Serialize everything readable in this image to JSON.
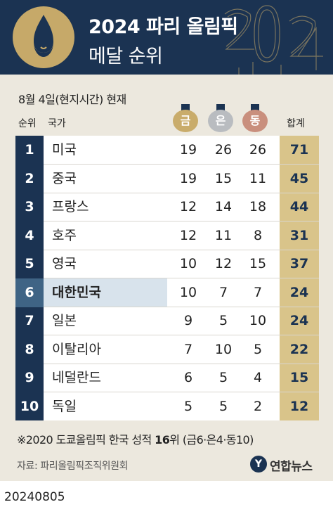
{
  "header": {
    "title": "2024 파리 올림픽",
    "subtitle": "메달 순위",
    "emblem_icon": "paris-2024-flame-emblem-icon",
    "colors": {
      "navy": "#1b3352",
      "gold": "#c6a969"
    }
  },
  "date_note": "8월 4일(현지시간) 현재",
  "columns": {
    "rank": "순위",
    "country": "국가",
    "total": "합계"
  },
  "medals": [
    {
      "label": "금",
      "color": "#c9ac6b"
    },
    {
      "label": "은",
      "color": "#b9bcc0"
    },
    {
      "label": "동",
      "color": "#c98f7d"
    }
  ],
  "rows": [
    {
      "rank": "1",
      "country": "미국",
      "gold": "19",
      "silver": "26",
      "bronze": "26",
      "total": "71"
    },
    {
      "rank": "2",
      "country": "중국",
      "gold": "19",
      "silver": "15",
      "bronze": "11",
      "total": "45"
    },
    {
      "rank": "3",
      "country": "프랑스",
      "gold": "12",
      "silver": "14",
      "bronze": "18",
      "total": "44"
    },
    {
      "rank": "4",
      "country": "호주",
      "gold": "12",
      "silver": "11",
      "bronze": "8",
      "total": "31"
    },
    {
      "rank": "5",
      "country": "영국",
      "gold": "10",
      "silver": "12",
      "bronze": "15",
      "total": "37"
    },
    {
      "rank": "6",
      "country": "대한민국",
      "gold": "10",
      "silver": "7",
      "bronze": "7",
      "total": "24",
      "highlight": true
    },
    {
      "rank": "7",
      "country": "일본",
      "gold": "9",
      "silver": "5",
      "bronze": "10",
      "total": "24"
    },
    {
      "rank": "8",
      "country": "이탈리아",
      "gold": "7",
      "silver": "10",
      "bronze": "5",
      "total": "22"
    },
    {
      "rank": "9",
      "country": "네덜란드",
      "gold": "6",
      "silver": "5",
      "bronze": "4",
      "total": "15"
    },
    {
      "rank": "10",
      "country": "독일",
      "gold": "5",
      "silver": "5",
      "bronze": "2",
      "total": "12"
    }
  ],
  "footnote": {
    "prefix": "※2020 도쿄올림픽 한국 성적 ",
    "rank": "16",
    "suffix": "위 (금6·은4·동10)"
  },
  "source": "자료: 파리올림픽조직위원회",
  "agency": {
    "name": "연합뉴스",
    "icon": "yonhap-logo-icon"
  },
  "stamp": "20240805"
}
